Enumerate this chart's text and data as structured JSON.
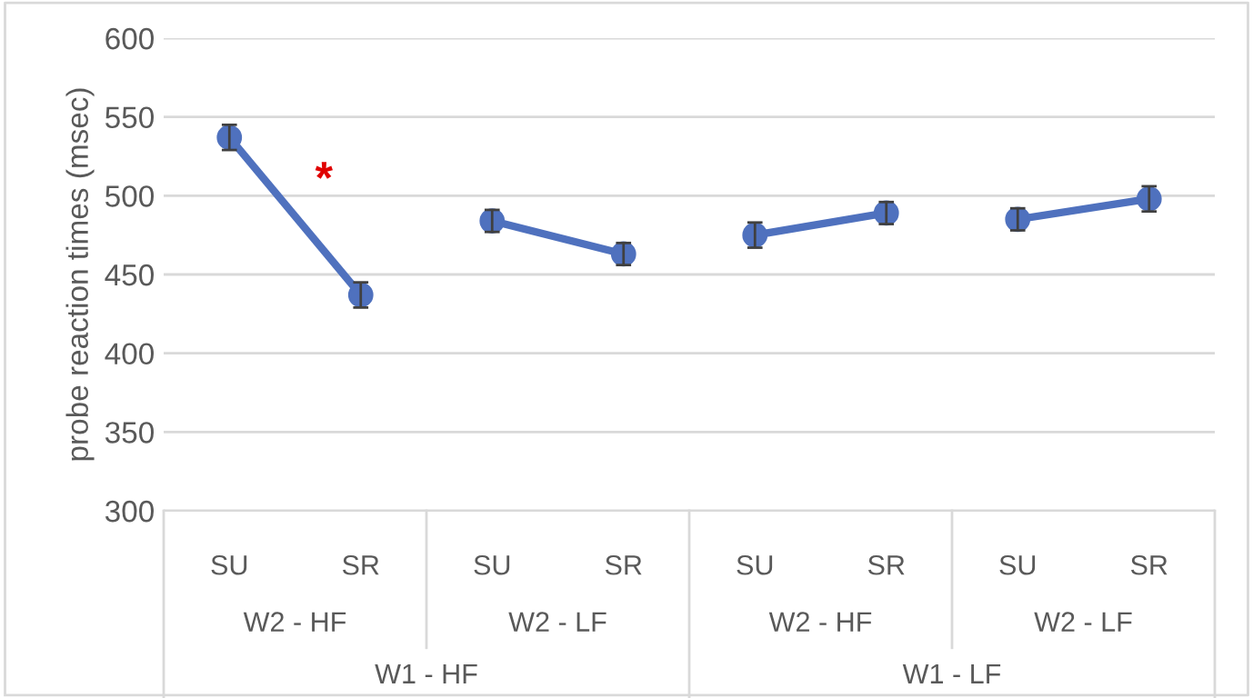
{
  "chart_data": {
    "type": "line",
    "ylabel": "probe reaction times (msec)",
    "categories": [
      "SU",
      "SR",
      "SU",
      "SR",
      "SU",
      "SR",
      "SU",
      "SR"
    ],
    "series": [
      {
        "color": "#4f71be",
        "values": [
          537,
          437,
          null,
          null,
          null,
          null,
          null,
          null
        ],
        "errors": [
          8,
          8,
          null,
          null,
          null,
          null,
          null,
          null
        ]
      },
      {
        "color": "#4f71be",
        "values": [
          null,
          null,
          484,
          463,
          null,
          null,
          null,
          null
        ],
        "errors": [
          null,
          null,
          7,
          7,
          null,
          null,
          null,
          null
        ]
      },
      {
        "color": "#4f71be",
        "values": [
          null,
          null,
          null,
          null,
          475,
          489,
          null,
          null
        ],
        "errors": [
          null,
          null,
          null,
          null,
          8,
          7,
          null,
          null
        ]
      },
      {
        "color": "#4f71be",
        "values": [
          null,
          null,
          null,
          null,
          null,
          null,
          485,
          498
        ],
        "errors": [
          null,
          null,
          null,
          null,
          null,
          null,
          7,
          8
        ]
      }
    ],
    "ylim": [
      300,
      600
    ],
    "yticks": [
      300,
      350,
      400,
      450,
      500,
      550,
      600
    ],
    "grid": "y",
    "marker": "circle",
    "line_style": "solid",
    "annotations": [
      "*",
      "W2 - HF",
      "W2 - LF",
      "W2 - HF",
      "W2 - LF",
      "W1 - HF",
      "W1 - LF"
    ]
  }
}
